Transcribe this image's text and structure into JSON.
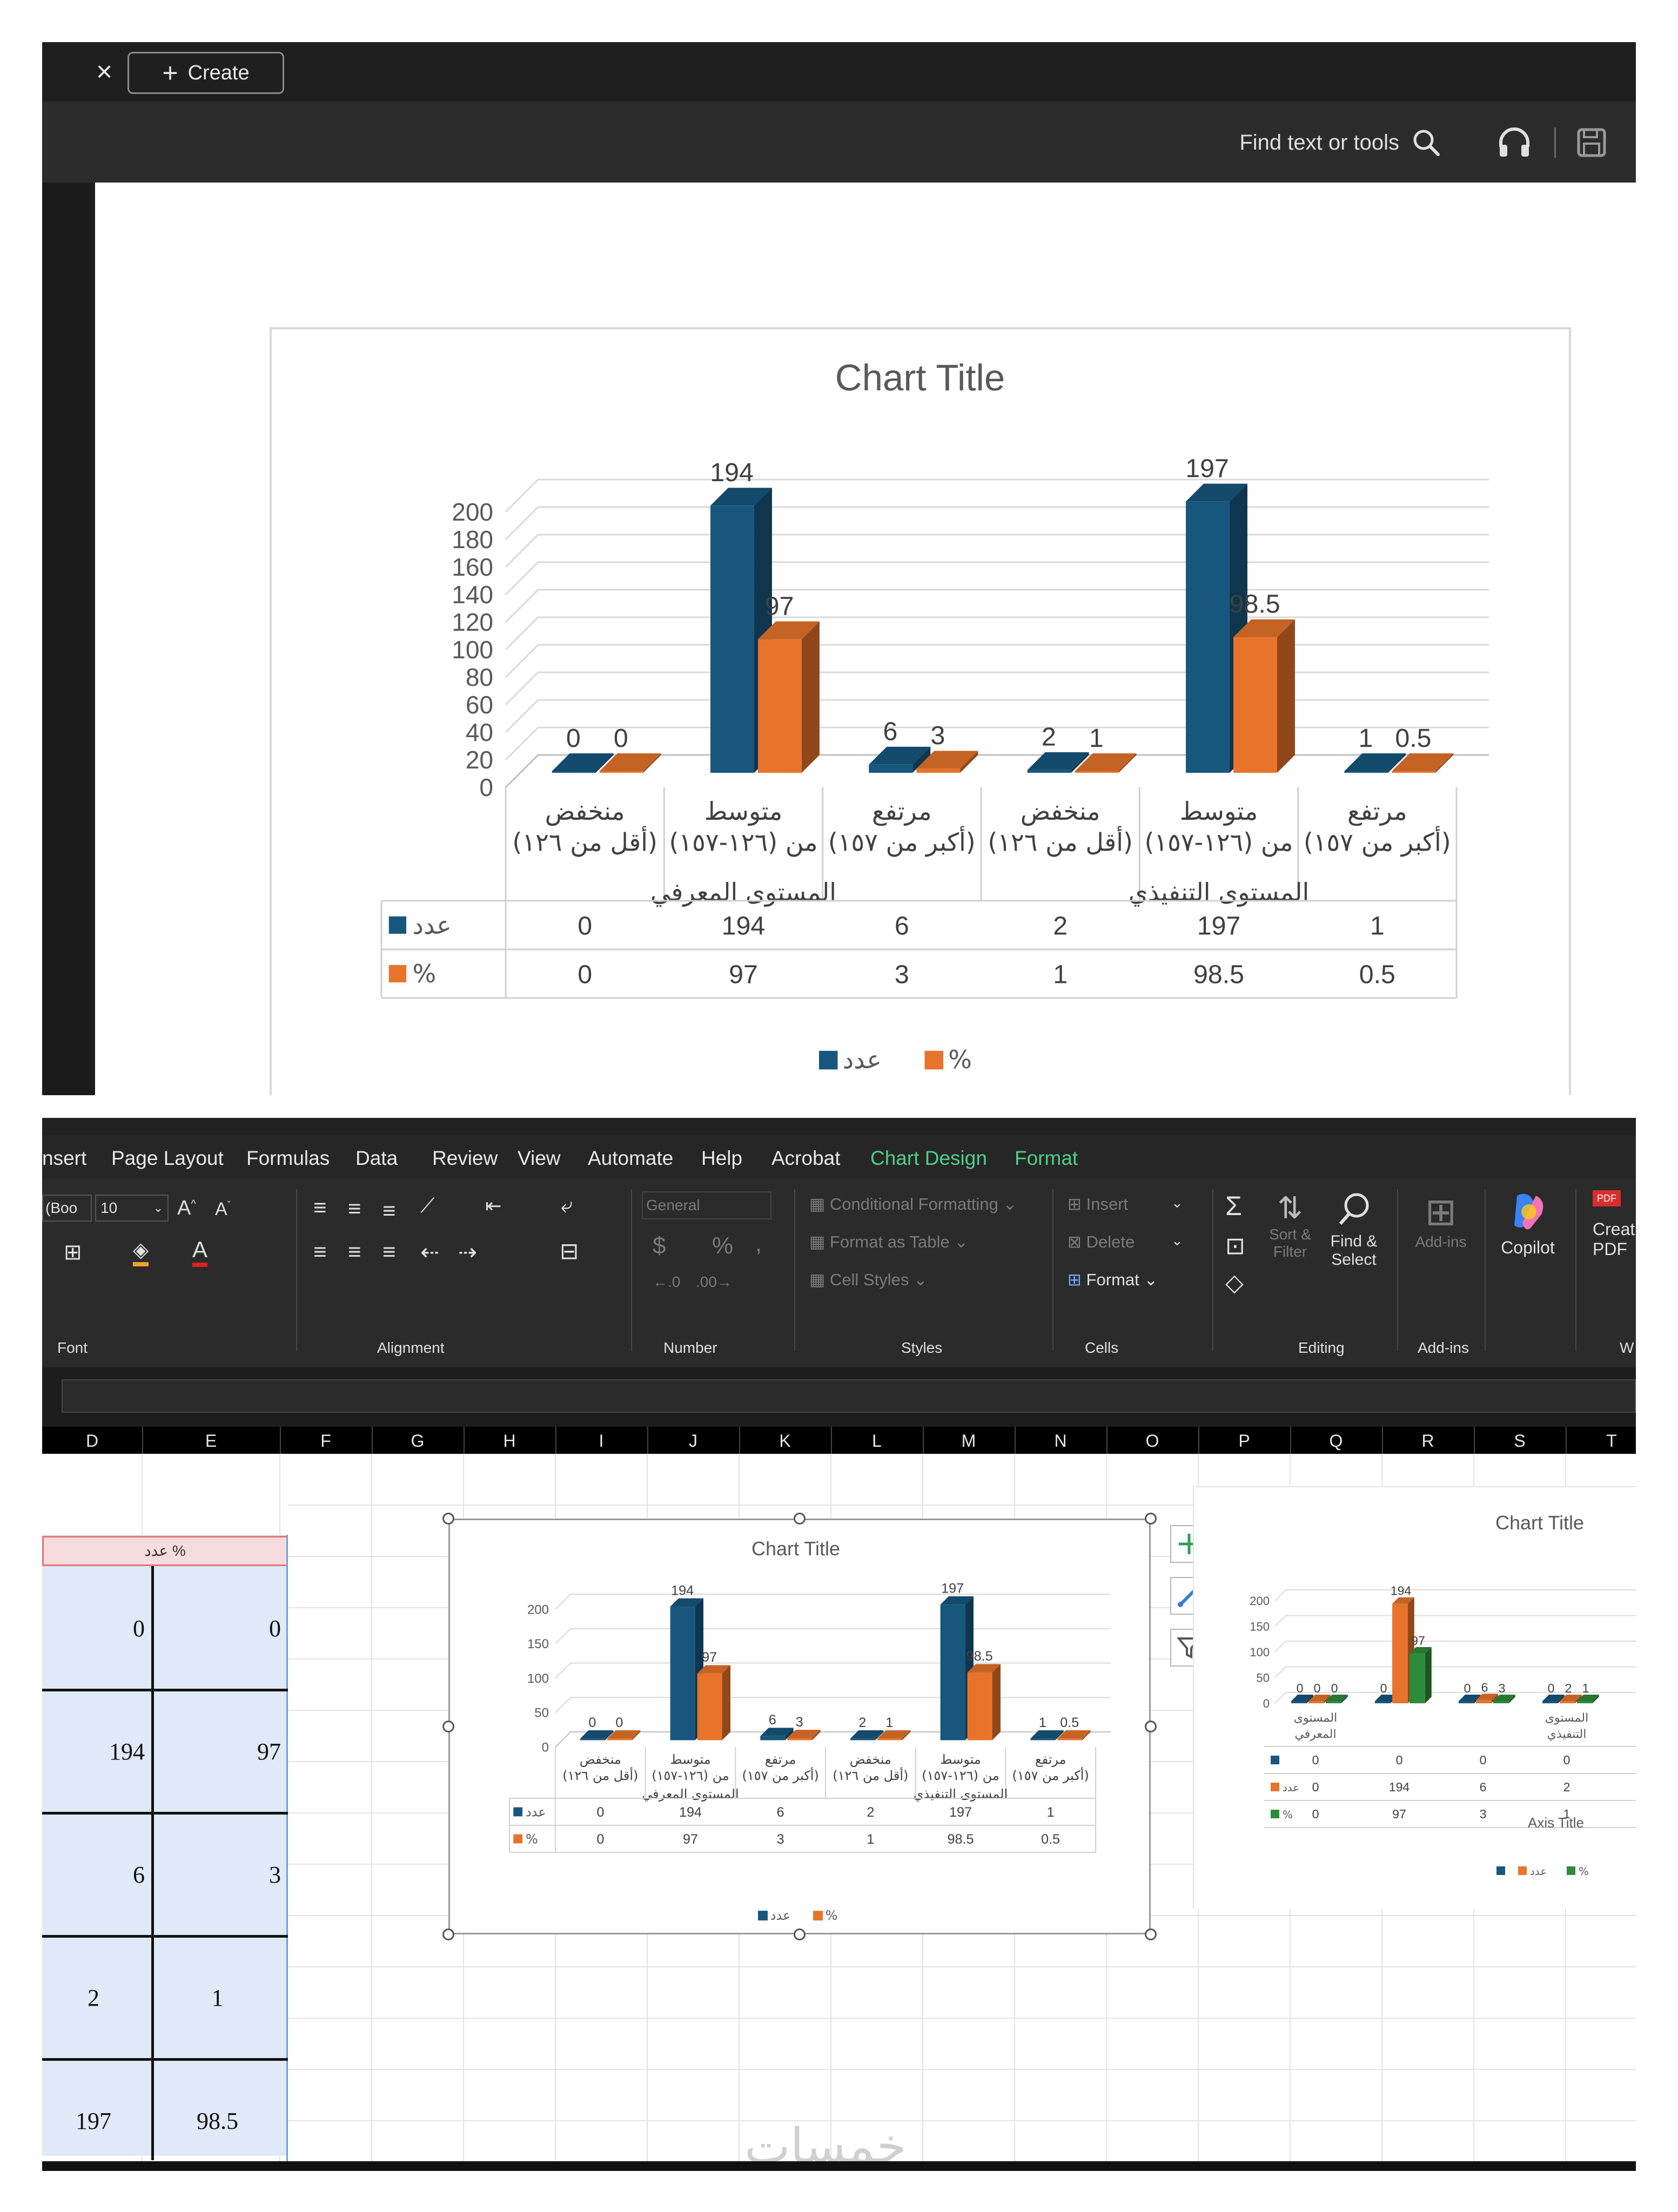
{
  "pdf_viewer": {
    "close_glyph": "×",
    "create_label": "Create",
    "find_tools_label": "Find text or tools"
  },
  "chart_data": [
    {
      "type": "bar",
      "title": "Chart Title",
      "groups": [
        "المستوى المعرفي",
        "المستوى التنفيذي"
      ],
      "categories": [
        "منخفض (أقل من ١٢٦)",
        "متوسط من (١٢٦-١٥٧)",
        "مرتفع (أكبر من ١٥٧)",
        "منخفض (أقل من ١٢٦)",
        "متوسط من (١٢٦-١٥٧)",
        "مرتفع (أكبر من ١٥٧)"
      ],
      "series": [
        {
          "name": "عدد",
          "values": [
            0,
            194,
            6,
            2,
            197,
            1
          ],
          "color": "#17577e"
        },
        {
          "name": "%",
          "values": [
            0,
            97,
            3,
            1,
            98.5,
            0.5
          ],
          "color": "#e8742c"
        }
      ],
      "ylim": [
        0,
        200
      ],
      "yticks": [
        0,
        20,
        40,
        60,
        80,
        100,
        120,
        140,
        160,
        180,
        200
      ],
      "legend": "bottom",
      "data_table": true
    },
    {
      "type": "bar",
      "title": "Chart Title",
      "groups": [
        "المستوى المعرفي",
        "المستوى التنفيذي"
      ],
      "categories": [
        "منخفض (أقل من ١٢٦)",
        "متوسط من (١٢٦-١٥٧)",
        "مرتفع (أكبر من ١٥٧)",
        "منخفض (أقل من ١٢٦)",
        "متوسط من (١٢٦-١٥٧)",
        "مرتفع (أكبر من ١٥٧)"
      ],
      "series": [
        {
          "name": "عدد",
          "values": [
            0,
            194,
            6,
            2,
            197,
            1
          ],
          "color": "#17577e"
        },
        {
          "name": "%",
          "values": [
            0,
            97,
            3,
            1,
            98.5,
            0.5
          ],
          "color": "#e8742c"
        }
      ],
      "ylim": [
        0,
        200
      ],
      "yticks": [
        0,
        50,
        100,
        150,
        200
      ],
      "legend": "bottom",
      "data_table": true
    },
    {
      "type": "bar",
      "title": "Chart Title",
      "xlabel": "Axis Title",
      "categories": [
        "المستوى المعرفي",
        "",
        "",
        "المستوى التنفيذي"
      ],
      "series": [
        {
          "name": "",
          "values": [
            0,
            0,
            0,
            0
          ],
          "color": "#17577e"
        },
        {
          "name": "عدد",
          "values": [
            0,
            194,
            6,
            2
          ],
          "color": "#e8742c"
        },
        {
          "name": "%",
          "values": [
            0,
            97,
            3,
            1
          ],
          "color": "#2e8b3c"
        }
      ],
      "ylim": [
        0,
        200
      ],
      "yticks": [
        0,
        50,
        100,
        150,
        200
      ],
      "legend": "bottom",
      "data_table": true
    }
  ],
  "excel": {
    "tabs": [
      "nsert",
      "Page Layout",
      "Formulas",
      "Data",
      "Review",
      "View",
      "Automate",
      "Help",
      "Acrobat",
      "Chart Design",
      "Format"
    ],
    "ribbon": {
      "font_name": "(Boo",
      "font_size": "10",
      "number_format": "General",
      "conditional_formatting": "Conditional Formatting",
      "format_as_table": "Format as Table",
      "cell_styles": "Cell Styles",
      "insert": "Insert",
      "delete": "Delete",
      "format": "Format",
      "sort_filter": "Sort & Filter",
      "find_select": "Find & Select",
      "addins": "Add-ins",
      "copilot": "Copilot",
      "create_pdf": "Creat PDF",
      "group_font": "Font",
      "group_alignment": "Alignment",
      "group_number": "Number",
      "group_styles": "Styles",
      "group_cells": "Cells",
      "group_editing": "Editing",
      "group_addins": "Add-ins",
      "group_w": "W"
    },
    "columns": [
      "D",
      "E",
      "F",
      "G",
      "H",
      "I",
      "J",
      "K",
      "L",
      "M",
      "N",
      "O",
      "P",
      "Q",
      "R",
      "S",
      "T"
    ],
    "table_header": "عدد %",
    "table_rows": [
      [
        "0",
        "0"
      ],
      [
        "194",
        "97"
      ],
      [
        "6",
        "3"
      ],
      [
        "2",
        "1"
      ],
      [
        "197",
        "98.5"
      ]
    ],
    "watermark": "خمسات"
  }
}
